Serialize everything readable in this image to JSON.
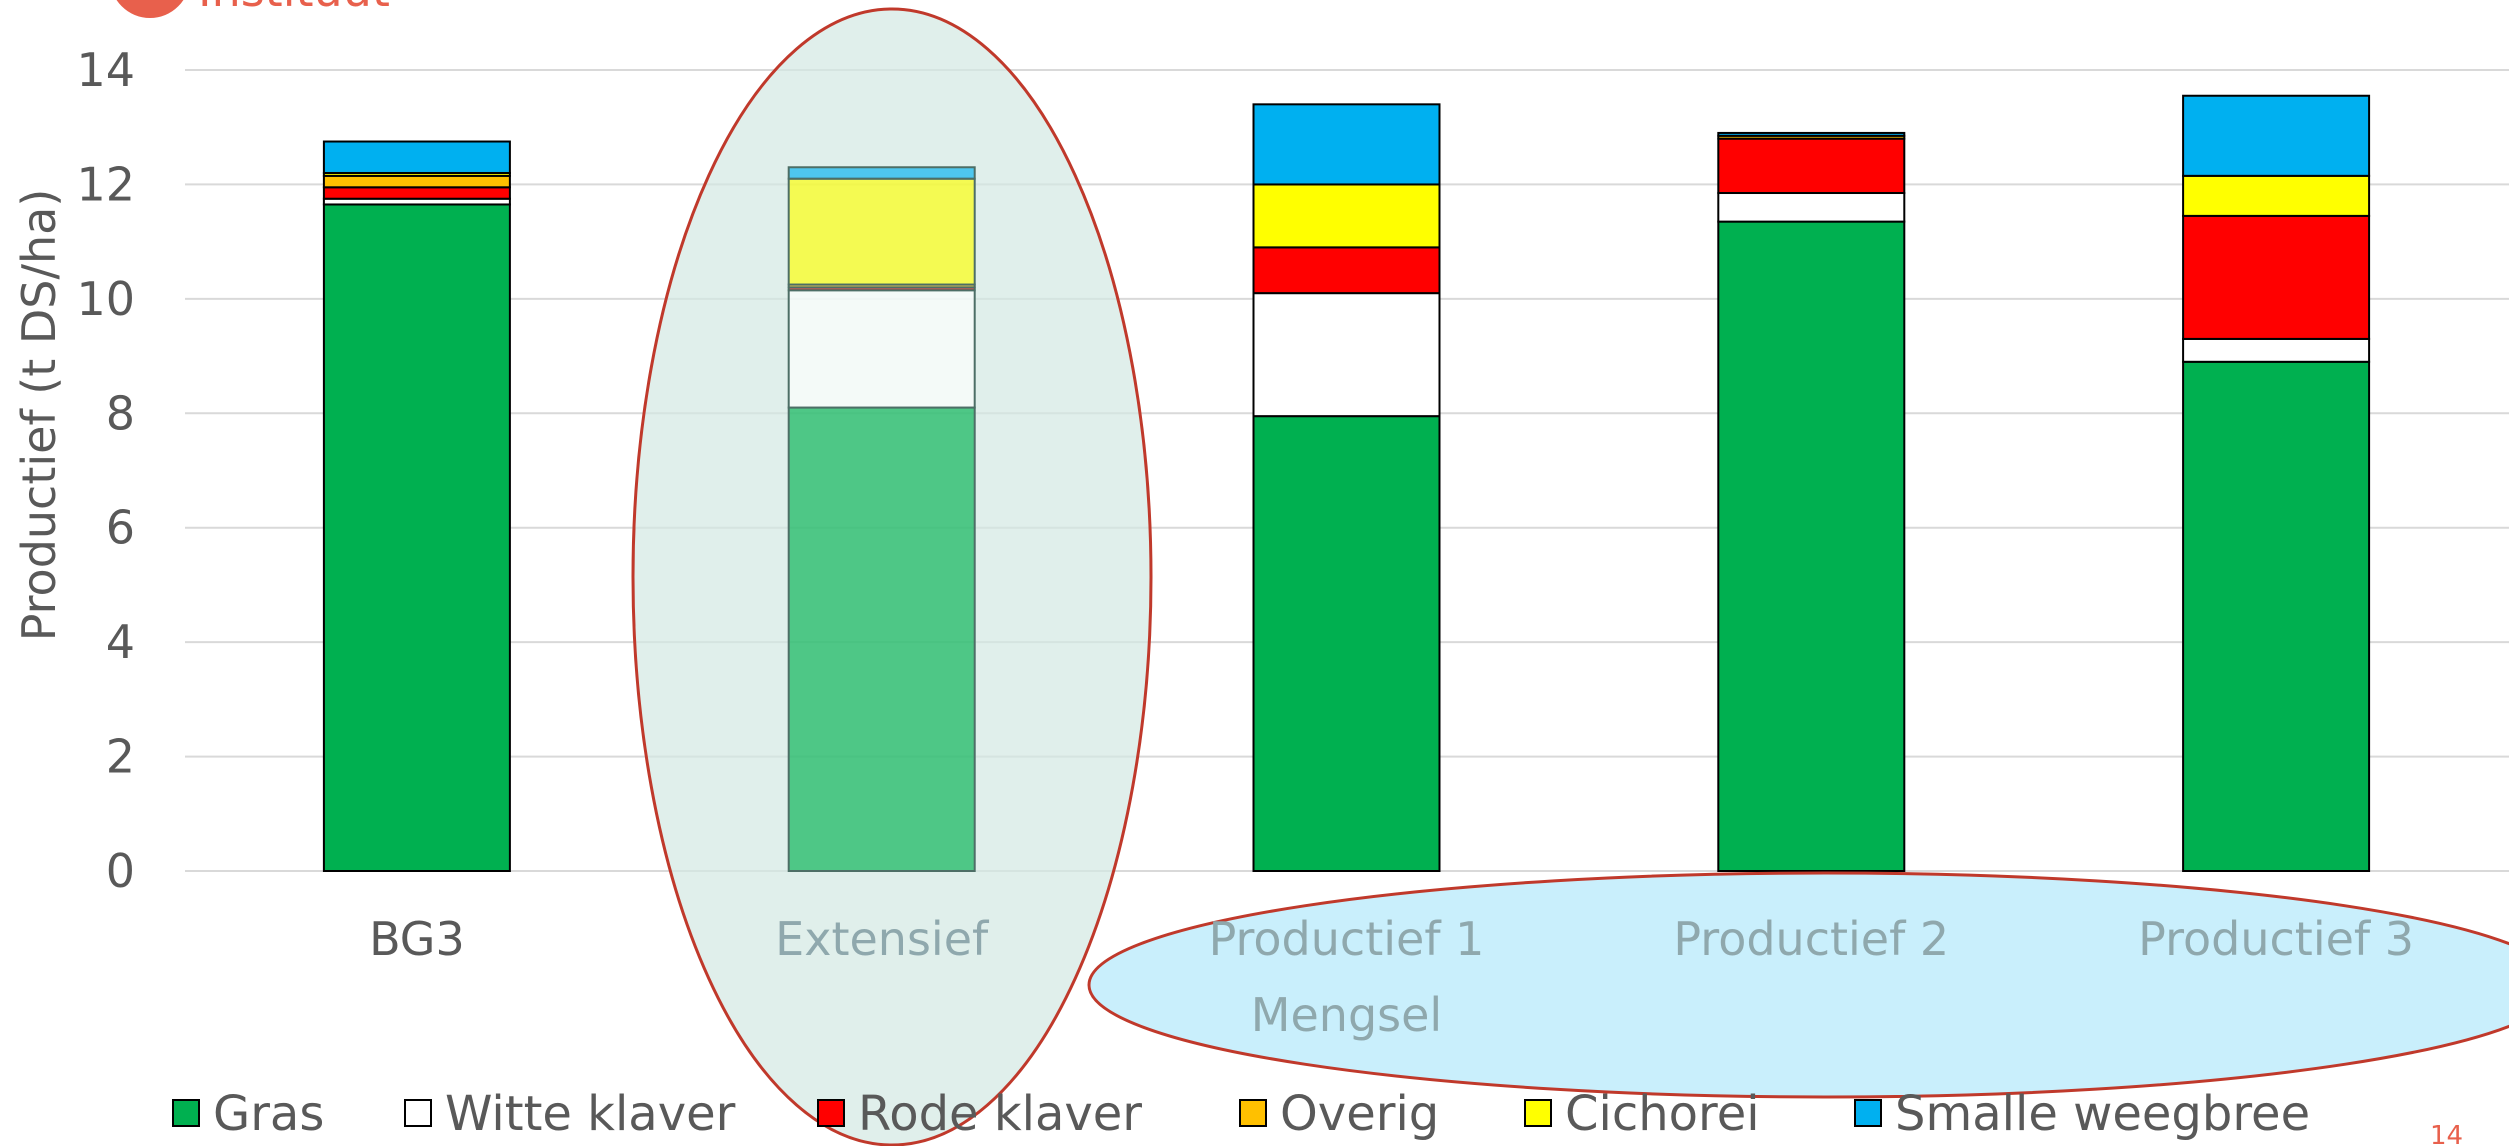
{
  "header": {
    "partial_text": "Instituut"
  },
  "page_number": "14",
  "chart_data": {
    "type": "bar",
    "stacked": true,
    "ylabel": "Productief (t DS/ha)",
    "ylim": [
      0,
      14
    ],
    "yticks": [
      0,
      2,
      4,
      6,
      8,
      10,
      12,
      14
    ],
    "grid": true,
    "legend_position": "bottom",
    "categories": [
      "BG3",
      "Extensief",
      "Productief 1\nMengsel",
      "Productief 2",
      "Productief 3"
    ],
    "series": [
      {
        "name": "Gras",
        "color": "#00b050",
        "values": [
          11.65,
          8.1,
          7.95,
          11.35,
          8.9
        ]
      },
      {
        "name": "Witte klaver",
        "color": "#ffffff",
        "values": [
          0.1,
          2.05,
          2.15,
          0.5,
          0.4
        ]
      },
      {
        "name": "Rode klaver",
        "color": "#ff0000",
        "values": [
          0.2,
          0.05,
          0.8,
          0.95,
          2.15
        ]
      },
      {
        "name": "Overig",
        "color": "#ffc000",
        "values": [
          0.2,
          0.05,
          0.0,
          0.05,
          0.0
        ]
      },
      {
        "name": "Cichorei",
        "color": "#ffff00",
        "values": [
          0.05,
          1.85,
          1.1,
          0.0,
          0.7
        ]
      },
      {
        "name": "Smalle weegbree",
        "color": "#00b0f0",
        "values": [
          0.55,
          0.2,
          1.4,
          0.05,
          1.4
        ]
      }
    ],
    "annotations": [
      {
        "type": "ellipse",
        "target": "Extensief",
        "fill": "#d3e8e3",
        "stroke": "#c0392b"
      },
      {
        "type": "ellipse",
        "target": "Productief 1 - Productief 3 labels",
        "fill": "#c6eefc",
        "stroke": "#c0392b"
      }
    ]
  }
}
